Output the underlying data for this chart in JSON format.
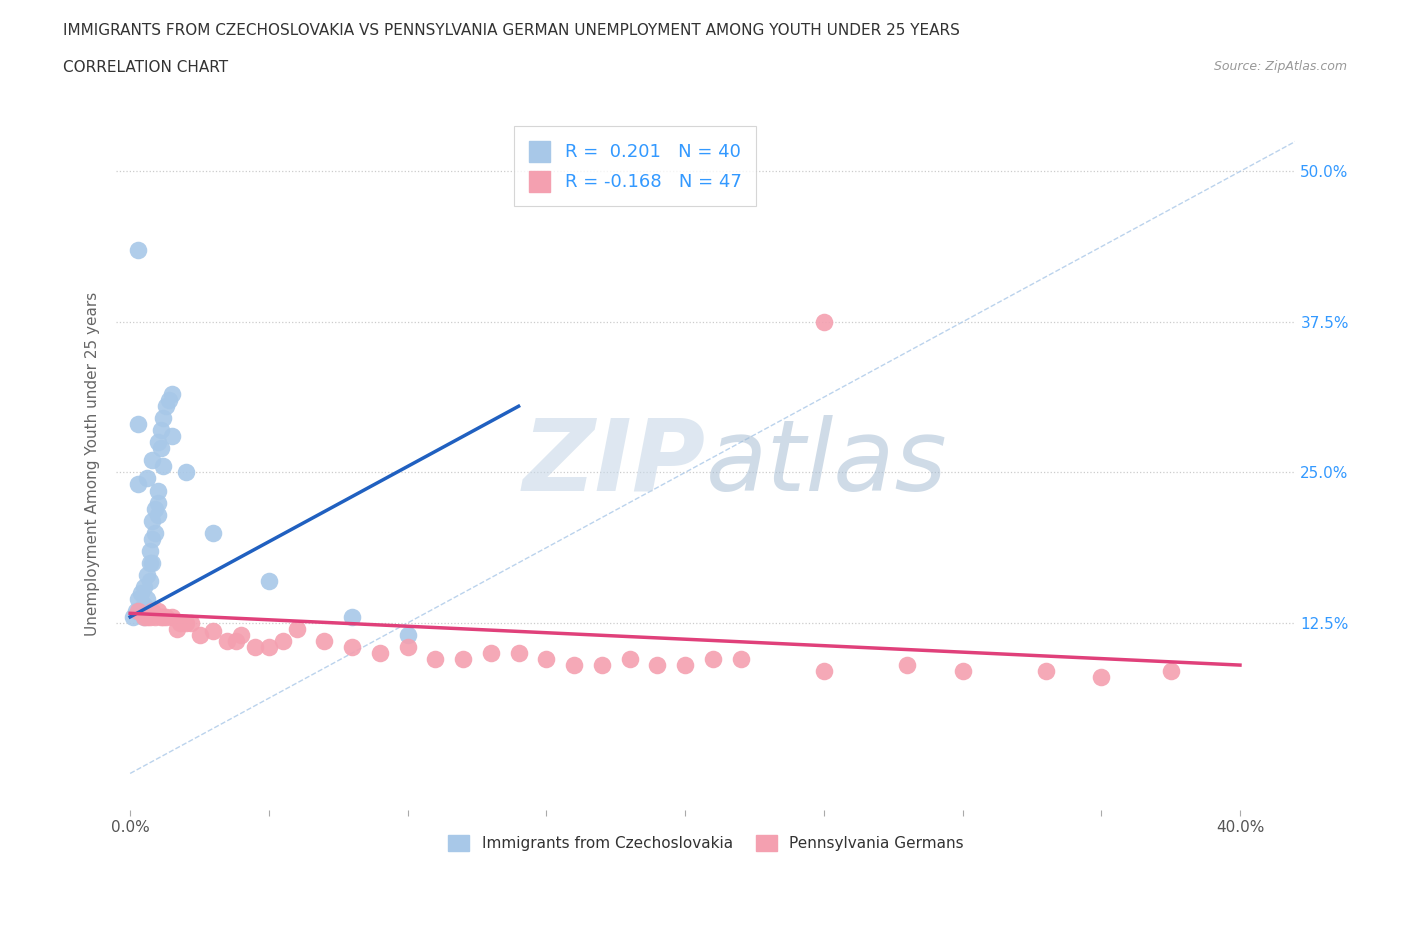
{
  "title_line1": "IMMIGRANTS FROM CZECHOSLOVAKIA VS PENNSYLVANIA GERMAN UNEMPLOYMENT AMONG YOUTH UNDER 25 YEARS",
  "title_line2": "CORRELATION CHART",
  "source": "Source: ZipAtlas.com",
  "ylabel": "Unemployment Among Youth under 25 years",
  "x_tick_labels_shown": [
    "0.0%",
    "40.0%"
  ],
  "x_tick_values_shown": [
    0.0,
    0.4
  ],
  "x_tick_minor": [
    0.05,
    0.1,
    0.15,
    0.2,
    0.25,
    0.3,
    0.35
  ],
  "y_tick_labels": [
    "12.5%",
    "25.0%",
    "37.5%",
    "50.0%"
  ],
  "y_tick_values": [
    0.125,
    0.25,
    0.375,
    0.5
  ],
  "xlim": [
    -0.005,
    0.42
  ],
  "ylim": [
    -0.03,
    0.545
  ],
  "legend_label1": "Immigrants from Czechoslovakia",
  "legend_label2": "Pennsylvania Germans",
  "R1": "0.201",
  "N1": "40",
  "R2": "-0.168",
  "N2": "47",
  "color1_scatter": "#a8c8e8",
  "color2_scatter": "#f4a0b0",
  "color1_line": "#2060c0",
  "color2_line": "#e0407a",
  "diag_color": "#aac8e8",
  "watermark_color": "#dce8f4",
  "background_color": "#ffffff",
  "blue_x": [
    0.001,
    0.002,
    0.003,
    0.003,
    0.004,
    0.004,
    0.005,
    0.005,
    0.005,
    0.006,
    0.006,
    0.007,
    0.007,
    0.007,
    0.008,
    0.008,
    0.008,
    0.009,
    0.009,
    0.01,
    0.01,
    0.01,
    0.011,
    0.011,
    0.012,
    0.013,
    0.014,
    0.015,
    0.003,
    0.006,
    0.008,
    0.01,
    0.012,
    0.015,
    0.02,
    0.03,
    0.05,
    0.08,
    0.1,
    0.003
  ],
  "blue_y": [
    0.13,
    0.135,
    0.145,
    0.29,
    0.135,
    0.15,
    0.13,
    0.14,
    0.155,
    0.145,
    0.165,
    0.16,
    0.175,
    0.185,
    0.175,
    0.195,
    0.21,
    0.2,
    0.22,
    0.215,
    0.225,
    0.235,
    0.27,
    0.285,
    0.295,
    0.305,
    0.31,
    0.315,
    0.435,
    0.245,
    0.26,
    0.275,
    0.255,
    0.28,
    0.25,
    0.2,
    0.16,
    0.13,
    0.115,
    0.24
  ],
  "pink_x": [
    0.003,
    0.005,
    0.006,
    0.007,
    0.008,
    0.009,
    0.01,
    0.011,
    0.012,
    0.013,
    0.015,
    0.017,
    0.018,
    0.02,
    0.022,
    0.025,
    0.03,
    0.035,
    0.038,
    0.04,
    0.045,
    0.05,
    0.055,
    0.06,
    0.07,
    0.08,
    0.09,
    0.1,
    0.11,
    0.12,
    0.13,
    0.14,
    0.15,
    0.16,
    0.17,
    0.18,
    0.19,
    0.2,
    0.21,
    0.22,
    0.25,
    0.28,
    0.3,
    0.33,
    0.35,
    0.375,
    0.25
  ],
  "pink_y": [
    0.135,
    0.13,
    0.13,
    0.13,
    0.135,
    0.13,
    0.135,
    0.13,
    0.13,
    0.13,
    0.13,
    0.12,
    0.125,
    0.125,
    0.125,
    0.115,
    0.118,
    0.11,
    0.11,
    0.115,
    0.105,
    0.105,
    0.11,
    0.12,
    0.11,
    0.105,
    0.1,
    0.105,
    0.095,
    0.095,
    0.1,
    0.1,
    0.095,
    0.09,
    0.09,
    0.095,
    0.09,
    0.09,
    0.095,
    0.095,
    0.085,
    0.09,
    0.085,
    0.085,
    0.08,
    0.085,
    0.375
  ],
  "blue_trend_x0": 0.0,
  "blue_trend_y0": 0.13,
  "blue_trend_x1": 0.14,
  "blue_trend_y1": 0.305,
  "pink_trend_x0": 0.0,
  "pink_trend_y0": 0.133,
  "pink_trend_x1": 0.4,
  "pink_trend_y1": 0.09
}
